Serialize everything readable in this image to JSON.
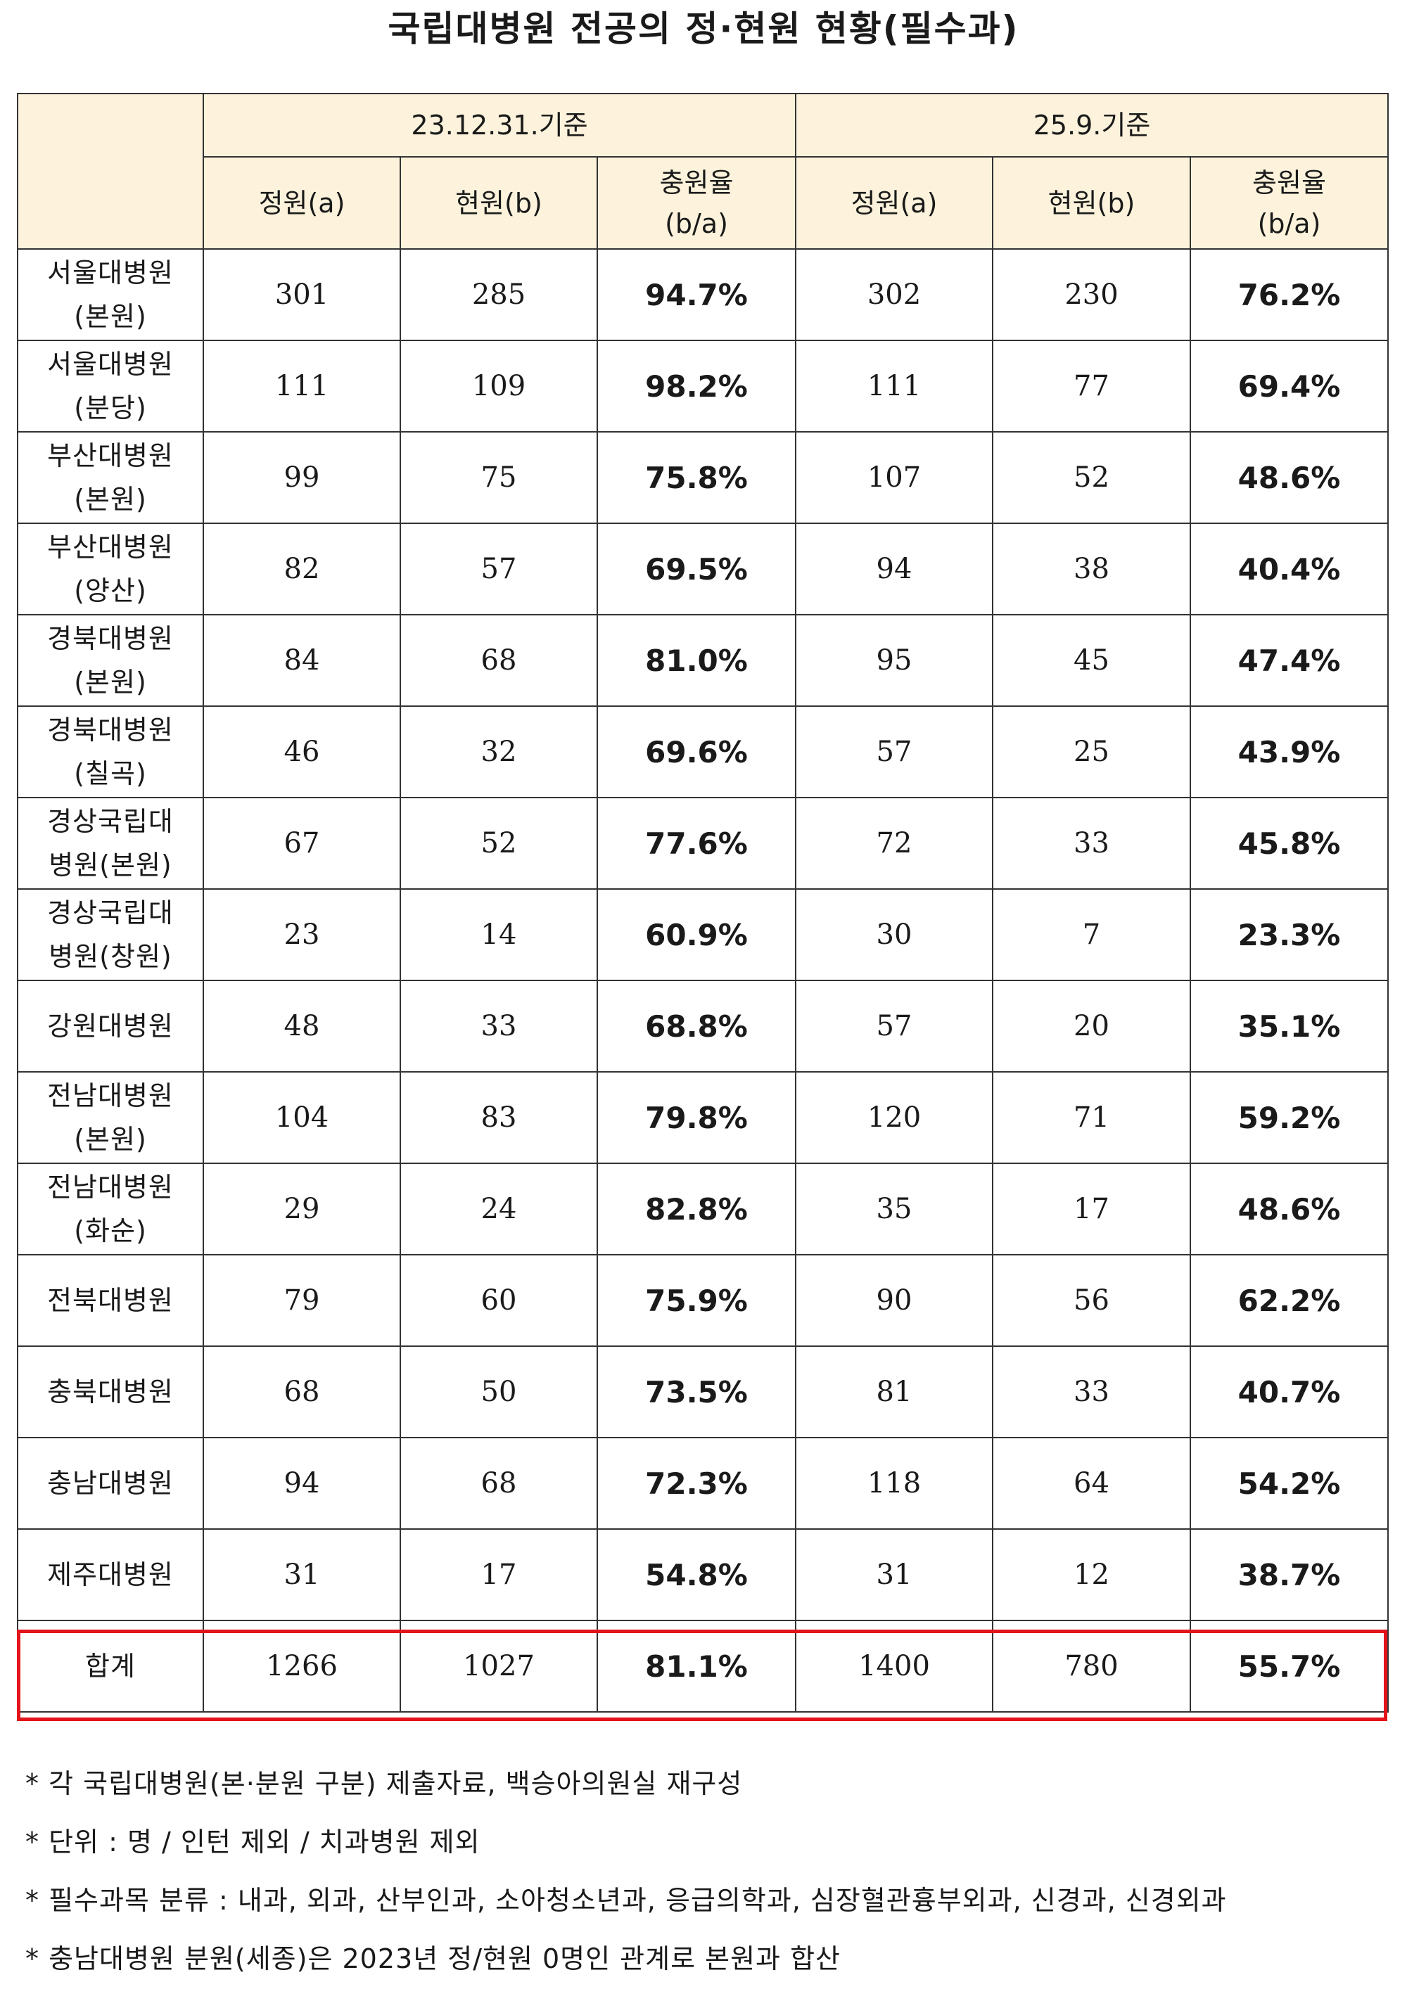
{
  "title": "국립대병원 전공의 정·현원 현황(필수과)",
  "periods": [
    "23.12.31.기준",
    "25.9.기준"
  ],
  "subheaders": {
    "quota": "정원(a)",
    "current": "현원(b)",
    "rate_line1": "충원율",
    "rate_line2": "(b/a)"
  },
  "rows": [
    {
      "name1": "서울대병원",
      "name2": "(본원)",
      "q23": "301",
      "c23": "285",
      "r23": "94.7%",
      "q25": "302",
      "c25": "230",
      "r25": "76.2%"
    },
    {
      "name1": "서울대병원",
      "name2": "(분당)",
      "q23": "111",
      "c23": "109",
      "r23": "98.2%",
      "q25": "111",
      "c25": "77",
      "r25": "69.4%"
    },
    {
      "name1": "부산대병원",
      "name2": "(본원)",
      "q23": "99",
      "c23": "75",
      "r23": "75.8%",
      "q25": "107",
      "c25": "52",
      "r25": "48.6%"
    },
    {
      "name1": "부산대병원",
      "name2": "(양산)",
      "q23": "82",
      "c23": "57",
      "r23": "69.5%",
      "q25": "94",
      "c25": "38",
      "r25": "40.4%"
    },
    {
      "name1": "경북대병원",
      "name2": "(본원)",
      "q23": "84",
      "c23": "68",
      "r23": "81.0%",
      "q25": "95",
      "c25": "45",
      "r25": "47.4%"
    },
    {
      "name1": "경북대병원",
      "name2": "(칠곡)",
      "q23": "46",
      "c23": "32",
      "r23": "69.6%",
      "q25": "57",
      "c25": "25",
      "r25": "43.9%"
    },
    {
      "name1": "경상국립대",
      "name2": "병원(본원)",
      "q23": "67",
      "c23": "52",
      "r23": "77.6%",
      "q25": "72",
      "c25": "33",
      "r25": "45.8%"
    },
    {
      "name1": "경상국립대",
      "name2": "병원(창원)",
      "q23": "23",
      "c23": "14",
      "r23": "60.9%",
      "q25": "30",
      "c25": "7",
      "r25": "23.3%"
    },
    {
      "name1": "강원대병원",
      "name2": "",
      "q23": "48",
      "c23": "33",
      "r23": "68.8%",
      "q25": "57",
      "c25": "20",
      "r25": "35.1%"
    },
    {
      "name1": "전남대병원",
      "name2": "(본원)",
      "q23": "104",
      "c23": "83",
      "r23": "79.8%",
      "q25": "120",
      "c25": "71",
      "r25": "59.2%"
    },
    {
      "name1": "전남대병원",
      "name2": "(화순)",
      "q23": "29",
      "c23": "24",
      "r23": "82.8%",
      "q25": "35",
      "c25": "17",
      "r25": "48.6%"
    },
    {
      "name1": "전북대병원",
      "name2": "",
      "q23": "79",
      "c23": "60",
      "r23": "75.9%",
      "q25": "90",
      "c25": "56",
      "r25": "62.2%"
    },
    {
      "name1": "충북대병원",
      "name2": "",
      "q23": "68",
      "c23": "50",
      "r23": "73.5%",
      "q25": "81",
      "c25": "33",
      "r25": "40.7%"
    },
    {
      "name1": "충남대병원",
      "name2": "",
      "q23": "94",
      "c23": "68",
      "r23": "72.3%",
      "q25": "118",
      "c25": "64",
      "r25": "54.2%"
    },
    {
      "name1": "제주대병원",
      "name2": "",
      "q23": "31",
      "c23": "17",
      "r23": "54.8%",
      "q25": "31",
      "c25": "12",
      "r25": "38.7%"
    },
    {
      "name1": "합계",
      "name2": "",
      "q23": "1266",
      "c23": "1027",
      "r23": "81.1%",
      "q25": "1400",
      "c25": "780",
      "r25": "55.7%"
    }
  ],
  "notes": [
    "* 각 국립대병원(본·분원 구분) 제출자료, 백승아의원실 재구성",
    "* 단위 : 명 / 인턴 제외 / 치과병원 제외",
    "* 필수과목 분류 : 내과, 외과, 산부인과, 소아청소년과, 응급의학과, 심장혈관흉부외과, 신경과, 신경외과",
    "* 충남대병원 분원(세종)은 2023년 정/현원 0명인 관계로 본원과 합산"
  ],
  "colors": {
    "header_bg": "#fdf3dc",
    "border": "#333333",
    "total_highlight": "#e3141b"
  }
}
